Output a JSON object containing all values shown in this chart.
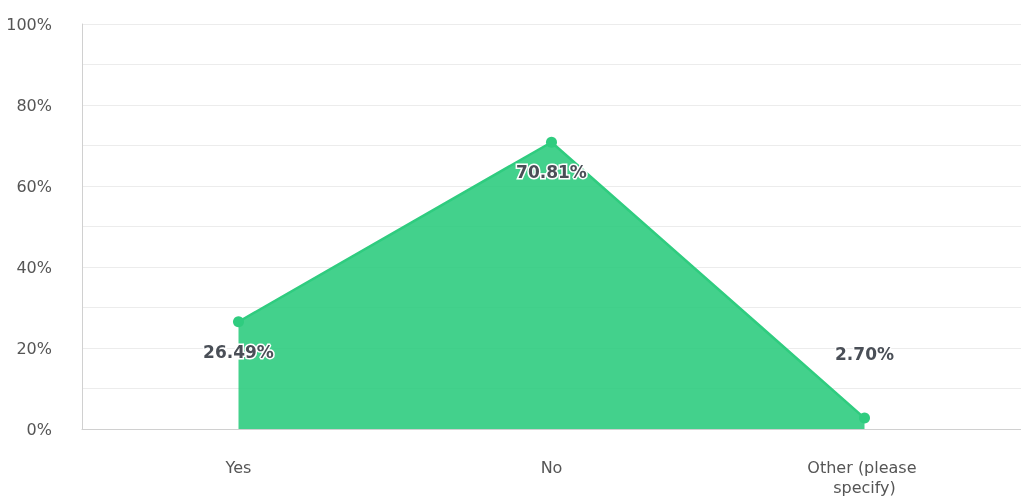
{
  "chart_data": {
    "type": "area",
    "categories": [
      "Yes",
      "No",
      "Other (please specify)"
    ],
    "series": [
      {
        "color": "#2fcc7f",
        "values": [
          26.49,
          70.81,
          2.7
        ],
        "value_labels": [
          "26.49%",
          "70.81%",
          "2.70%"
        ]
      }
    ],
    "ylim": [
      0,
      100
    ],
    "yticks": [
      {
        "value": 0,
        "label": "0%"
      },
      {
        "value": 10,
        "label": null
      },
      {
        "value": 20,
        "label": "20%"
      },
      {
        "value": 30,
        "label": null
      },
      {
        "value": 40,
        "label": "40%"
      },
      {
        "value": 50,
        "label": null
      },
      {
        "value": 60,
        "label": "60%"
      },
      {
        "value": 70,
        "label": null
      },
      {
        "value": 80,
        "label": "80%"
      },
      {
        "value": 90,
        "label": null
      },
      {
        "value": 100,
        "label": "100%"
      }
    ],
    "grid": true,
    "marker": "circle"
  }
}
